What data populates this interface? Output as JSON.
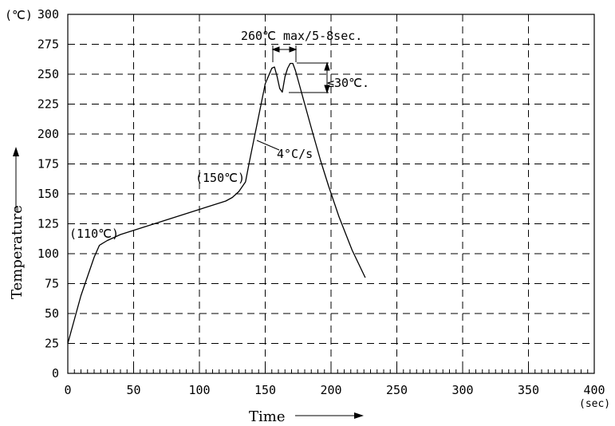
{
  "chart_data": {
    "type": "line",
    "title": "",
    "xlabel": "Time",
    "ylabel": "Temperature",
    "x_unit": "(sec)",
    "y_unit": "(℃)",
    "xlim": [
      0,
      400
    ],
    "ylim": [
      0,
      300
    ],
    "x_ticks": [
      0,
      50,
      100,
      150,
      200,
      250,
      300,
      350,
      400
    ],
    "y_ticks": [
      0,
      25,
      50,
      75,
      100,
      125,
      150,
      175,
      200,
      225,
      250,
      275,
      300
    ],
    "grid": "dashed",
    "legend": "none",
    "series": [
      {
        "x": [
          0,
          10,
          20,
          24,
          30,
          40,
          60,
          80,
          100,
          120,
          125,
          130,
          135,
          138,
          145,
          150,
          155,
          157,
          159,
          161,
          163,
          165,
          167,
          169,
          171,
          173,
          178,
          185,
          192,
          198,
          206,
          216,
          226
        ],
        "y": [
          25,
          65,
          97,
          107,
          111,
          116,
          123,
          130,
          137,
          144,
          147,
          152,
          160,
          177,
          215,
          242,
          255,
          256,
          248,
          238,
          235,
          248,
          255,
          259,
          259,
          253,
          233,
          205,
          178,
          157,
          131,
          103,
          80
        ]
      }
    ],
    "annotations": {
      "label_110": "(110℃)",
      "label_150": "(150℃)",
      "label_260": "260℃  max/5-8sec.",
      "label_30": "≤30℃.",
      "label_rate": "4°C/s"
    },
    "line_color": "#000000"
  }
}
